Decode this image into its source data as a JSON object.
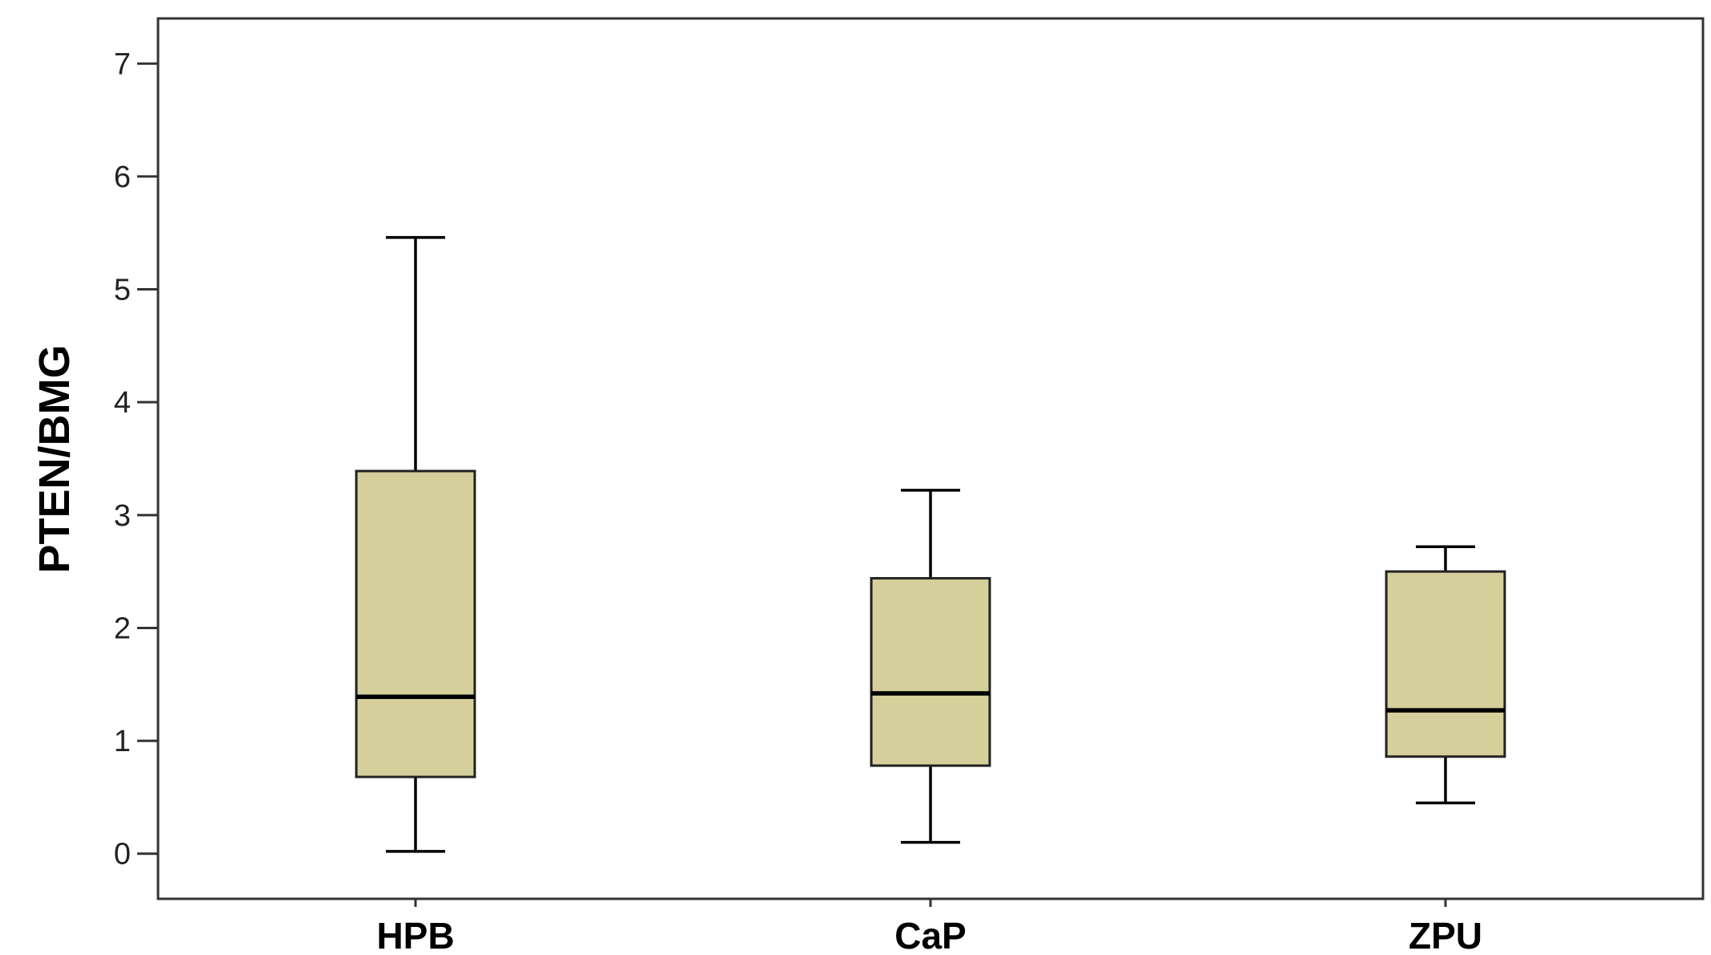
{
  "chart_data": {
    "type": "boxplot",
    "ylabel": "PTEN/BMG",
    "xlabel": "",
    "ylim": [
      -0.4,
      7.4
    ],
    "yticks": [
      0,
      1,
      2,
      3,
      4,
      5,
      6,
      7
    ],
    "grid": false,
    "legend": "none",
    "colors": {
      "box_fill": "#d5cf9b",
      "stroke": "#000000",
      "frame": "#333333"
    },
    "categories": [
      "HPB",
      "CaP",
      "ZPU"
    ],
    "boxes": [
      {
        "category": "HPB",
        "min": 0.02,
        "q1": 0.68,
        "median": 1.39,
        "q3": 3.39,
        "max": 5.46
      },
      {
        "category": "CaP",
        "min": 0.1,
        "q1": 0.78,
        "median": 1.42,
        "q3": 2.44,
        "max": 3.22
      },
      {
        "category": "ZPU",
        "min": 0.45,
        "q1": 0.86,
        "median": 1.27,
        "q3": 2.5,
        "max": 2.72
      }
    ]
  }
}
